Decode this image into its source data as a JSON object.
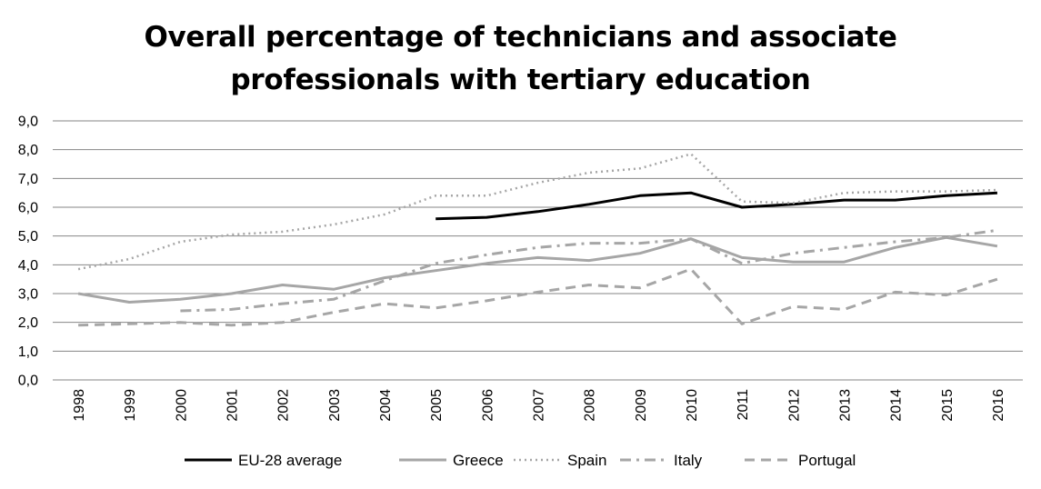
{
  "chart_data": {
    "type": "line",
    "title": "Overall percentage of technicians and associate\nprofessionals with tertiary education",
    "xlabel": "",
    "ylabel": "",
    "ylim": [
      0,
      9
    ],
    "yticks": [
      "0,0",
      "1,0",
      "2,0",
      "3,0",
      "4,0",
      "5,0",
      "6,0",
      "7,0",
      "8,0",
      "9,0"
    ],
    "categories": [
      "1998",
      "1999",
      "2000",
      "2001",
      "2002",
      "2003",
      "2004",
      "2005",
      "2006",
      "2007",
      "2008",
      "2009",
      "2010",
      "2011",
      "2012",
      "2013",
      "2014",
      "2015",
      "2016"
    ],
    "grid": "horizontal",
    "legend_position": "bottom",
    "series": [
      {
        "name": "EU-28 average",
        "color": "#000000",
        "style": "solid",
        "values": [
          null,
          null,
          null,
          null,
          null,
          null,
          null,
          5.6,
          5.65,
          5.85,
          6.1,
          6.4,
          6.5,
          6.0,
          6.1,
          6.25,
          6.25,
          6.4,
          6.5
        ]
      },
      {
        "name": "Greece",
        "color": "#a6a6a6",
        "style": "solid",
        "values": [
          3.0,
          2.7,
          2.8,
          3.0,
          3.3,
          3.15,
          3.55,
          3.8,
          4.05,
          4.25,
          4.15,
          4.4,
          4.9,
          4.25,
          4.1,
          4.1,
          4.6,
          4.95,
          4.65
        ]
      },
      {
        "name": "Spain",
        "color": "#a6a6a6",
        "style": "dotted",
        "values": [
          3.85,
          4.2,
          4.8,
          5.05,
          5.15,
          5.4,
          5.75,
          6.4,
          6.4,
          6.85,
          7.2,
          7.35,
          7.85,
          6.2,
          6.15,
          6.5,
          6.55,
          6.55,
          6.6
        ]
      },
      {
        "name": "Italy",
        "color": "#a6a6a6",
        "style": "dashdot",
        "values": [
          null,
          null,
          2.4,
          2.45,
          2.65,
          2.8,
          3.45,
          4.05,
          4.35,
          4.6,
          4.75,
          4.75,
          4.9,
          4.05,
          4.4,
          4.6,
          4.8,
          4.95,
          5.2
        ]
      },
      {
        "name": "Portugal",
        "color": "#a6a6a6",
        "style": "dashed",
        "values": [
          1.9,
          1.95,
          2.0,
          1.9,
          2.0,
          2.35,
          2.65,
          2.5,
          2.75,
          3.05,
          3.3,
          3.2,
          3.85,
          1.95,
          2.55,
          2.45,
          3.05,
          2.95,
          3.5
        ]
      }
    ]
  }
}
